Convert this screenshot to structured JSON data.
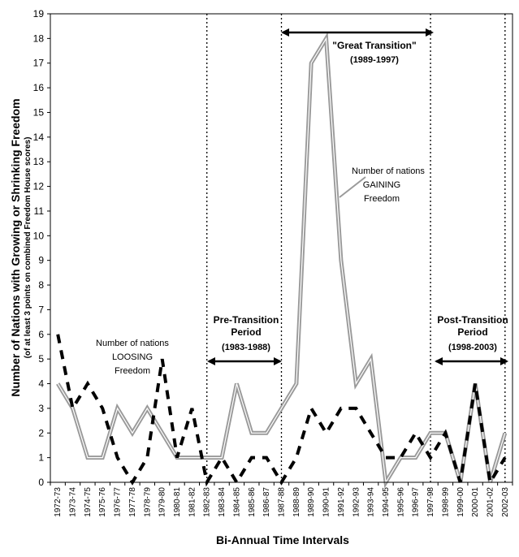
{
  "chart_data": {
    "type": "line",
    "categories": [
      "1972-73",
      "1973-74",
      "1974-75",
      "1975-76",
      "1976-77",
      "1977-78",
      "1978-79",
      "1979-80",
      "1980-81",
      "1981-82",
      "1982-83",
      "1983-84",
      "1984-85",
      "1985-86",
      "1986-87",
      "1987-88",
      "1988-89",
      "1989-90",
      "1990-91",
      "1991-92",
      "1992-93",
      "1993-94",
      "1994-95",
      "1995-96",
      "1996-97",
      "1997-98",
      "1998-99",
      "1999-00",
      "2000-01",
      "2001-02",
      "2002-03"
    ],
    "series": [
      {
        "key": "gaining",
        "color": "#9a9a9a",
        "values": [
          4,
          3,
          1,
          1,
          3,
          2,
          3,
          2,
          1,
          1,
          1,
          1,
          4,
          2,
          2,
          3,
          4,
          17,
          18,
          9,
          4,
          5,
          0,
          1,
          1,
          2,
          2,
          0,
          4,
          0,
          2
        ]
      },
      {
        "key": "loosing",
        "color": "#000000",
        "values": [
          6,
          3,
          4,
          3,
          1,
          0,
          1,
          5,
          1,
          3,
          0,
          1,
          0,
          1,
          1,
          0,
          1,
          3,
          2,
          3,
          3,
          2,
          1,
          1,
          2,
          1,
          2,
          0,
          4,
          0,
          1
        ]
      }
    ],
    "ylim": [
      0,
      19
    ],
    "yticks": [
      0,
      1,
      2,
      3,
      4,
      5,
      6,
      7,
      8,
      9,
      10,
      11,
      12,
      13,
      14,
      15,
      16,
      17,
      18,
      19
    ],
    "xlabel": "Bi-Annual Time Intervals",
    "ylabel": "Number of Nations with Growing or Shrinking Freedom",
    "ylabel_sub": "(of at least 3 points on combined Freedom House scores)",
    "period_dividers": [
      "1982-83",
      "1987-88",
      "1997-98",
      "2002-03"
    ],
    "annotations": {
      "pre": {
        "line1": "Pre-Transition",
        "line2": "Period",
        "line3": "(1983-1988)"
      },
      "great": {
        "line1": "\"Great Transition\"",
        "line2": "(1989-1997)"
      },
      "post": {
        "line1": "Post-Transition",
        "line2": "Period",
        "line3": "(1998-2003)"
      },
      "gaining": {
        "line1": "Number of nations",
        "line2": "GAINING",
        "line3": "Freedom"
      },
      "loosing": {
        "line1": "Number of nations",
        "line2": "LOOSING",
        "line3": "Freedom"
      }
    },
    "grid": false,
    "legend": "none"
  }
}
